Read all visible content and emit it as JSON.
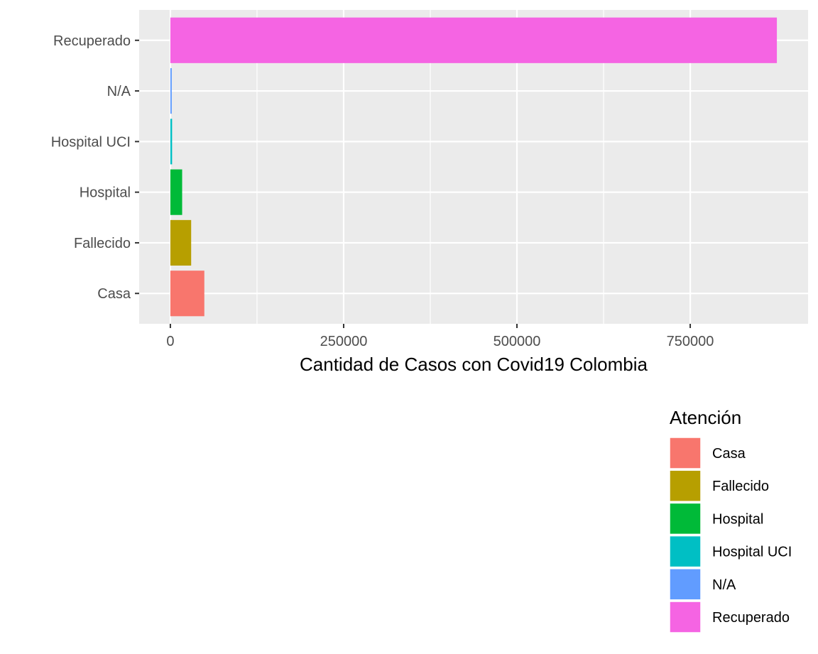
{
  "chart_data": {
    "type": "bar",
    "orientation": "horizontal",
    "categories": [
      "Casa",
      "Fallecido",
      "Hospital",
      "Hospital UCI",
      "N/A",
      "Recuperado"
    ],
    "values": [
      49000,
      30000,
      17000,
      2500,
      2000,
      875000
    ],
    "colors": [
      "#F8766D",
      "#B79F00",
      "#00BA38",
      "#00BFC4",
      "#619CFF",
      "#F564E3"
    ],
    "xlabel": "Cantidad de Casos con Covid19 Colombia",
    "ylabel": "",
    "xlim": [
      -45000,
      920000
    ],
    "x_ticks": [
      0,
      250000,
      500000,
      750000
    ],
    "x_tick_labels": [
      "0",
      "250000",
      "500000",
      "750000"
    ],
    "grid": true,
    "legend": {
      "title": "Atención",
      "position": "bottom-right",
      "entries": [
        "Casa",
        "Fallecido",
        "Hospital",
        "Hospital UCI",
        "N/A",
        "Recuperado"
      ]
    }
  }
}
